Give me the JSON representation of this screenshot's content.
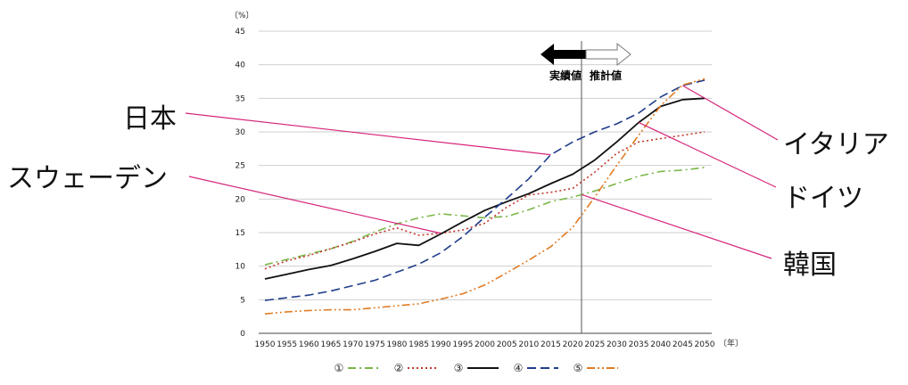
{
  "chart_data": {
    "type": "line",
    "y_unit": "〔%〕",
    "x_unit": "〔年〕",
    "ylim": [
      0,
      45
    ],
    "y_ticks": [
      0,
      5,
      10,
      15,
      20,
      25,
      30,
      35,
      40,
      45
    ],
    "x": [
      1950,
      1955,
      1960,
      1965,
      1970,
      1975,
      1980,
      1985,
      1990,
      1995,
      2000,
      2005,
      2010,
      2015,
      2020,
      2025,
      2030,
      2035,
      2040,
      2045,
      2050
    ],
    "xlim": [
      1950,
      2050
    ],
    "grid": "horizontal",
    "divider_year": 2022,
    "actual_label": "実績値",
    "projected_label": "推計値",
    "series": [
      {
        "name": "①",
        "color": "#7ab648",
        "dash": "dashdot",
        "values": [
          10.2,
          11.0,
          11.8,
          12.6,
          13.7,
          15.1,
          16.3,
          17.2,
          17.8,
          17.5,
          17.2,
          17.4,
          18.4,
          19.6,
          20.3,
          21.2,
          22.3,
          23.4,
          24.1,
          24.3,
          24.7
        ]
      },
      {
        "name": "②",
        "color": "#c0392b",
        "dash": "dotted",
        "values": [
          9.6,
          10.8,
          11.6,
          12.6,
          13.6,
          14.8,
          15.7,
          14.6,
          14.9,
          15.4,
          16.4,
          18.8,
          20.6,
          21.0,
          21.6,
          24.0,
          26.8,
          28.5,
          29.0,
          29.5,
          30.0
        ]
      },
      {
        "name": "③",
        "color": "#111111",
        "dash": "solid",
        "values": [
          8.1,
          8.8,
          9.5,
          10.1,
          11.1,
          12.2,
          13.4,
          13.1,
          14.8,
          16.6,
          18.3,
          19.6,
          20.8,
          22.3,
          23.7,
          25.8,
          28.5,
          31.4,
          33.8,
          34.8,
          35.0
        ]
      },
      {
        "name": "④",
        "color": "#1f3d8a",
        "dash": "dashed",
        "values": [
          4.9,
          5.3,
          5.7,
          6.3,
          7.1,
          7.9,
          9.1,
          10.3,
          12.0,
          14.4,
          17.3,
          20.1,
          23.0,
          26.6,
          28.5,
          30.0,
          31.2,
          32.8,
          35.2,
          36.9,
          37.7
        ]
      },
      {
        "name": "⑤",
        "color": "#e07b24",
        "dash": "dashdotdot",
        "values": [
          2.9,
          3.2,
          3.4,
          3.5,
          3.5,
          3.8,
          4.1,
          4.4,
          5.1,
          5.9,
          7.2,
          9.0,
          10.9,
          12.9,
          15.8,
          20.3,
          25.0,
          29.5,
          33.9,
          37.0,
          37.9
        ]
      }
    ],
    "country_labels": [
      {
        "text": "日本"
      },
      {
        "text": "スウェーデン"
      },
      {
        "text": "イタリア"
      },
      {
        "text": "ドイツ"
      },
      {
        "text": "韓国"
      }
    ],
    "legend": [
      {
        "label": "①",
        "series": 0
      },
      {
        "label": "②",
        "series": 1
      },
      {
        "label": "③",
        "series": 2
      },
      {
        "label": "④",
        "series": 3
      },
      {
        "label": "⑤",
        "series": 4
      }
    ]
  }
}
